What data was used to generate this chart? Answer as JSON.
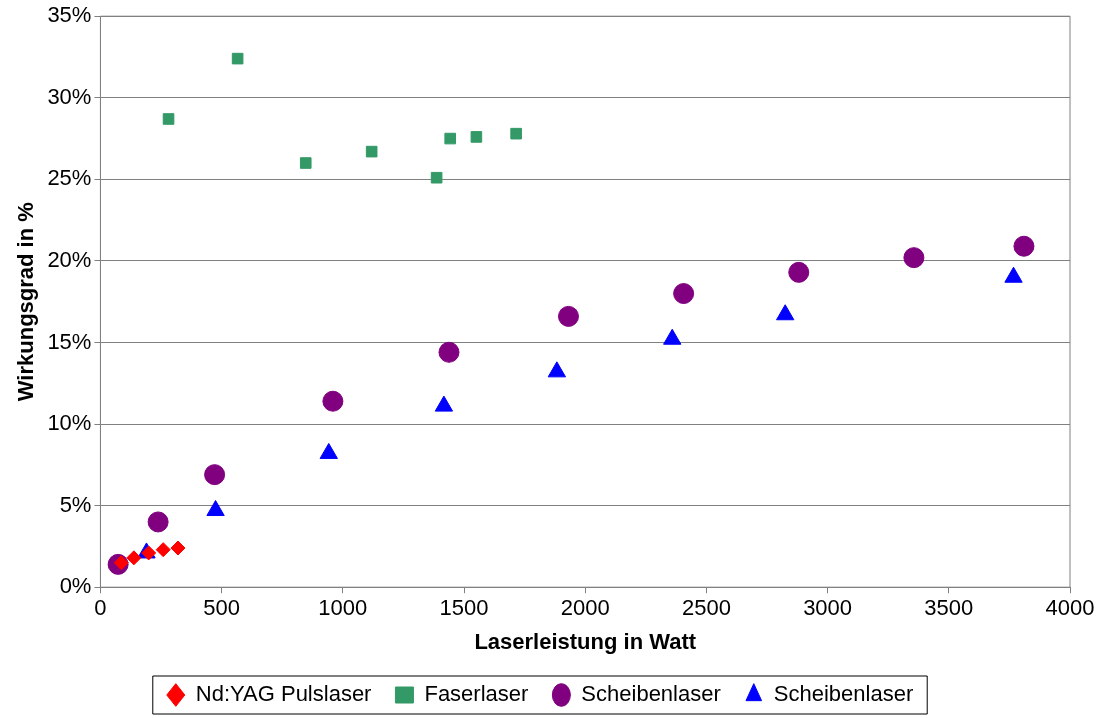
{
  "chart_data": {
    "type": "scatter",
    "xlabel": "Laserleistung in Watt",
    "ylabel": "Wirkungsgrad in %",
    "xlim": [
      0,
      4000
    ],
    "xticks": [
      0,
      500,
      1000,
      1500,
      2000,
      2500,
      3000,
      3500,
      4000
    ],
    "ylim": [
      0,
      35
    ],
    "yticks": [
      {
        "value": 0,
        "label": "0%"
      },
      {
        "value": 5,
        "label": "5%"
      },
      {
        "value": 10,
        "label": "10%"
      },
      {
        "value": 15,
        "label": "15%"
      },
      {
        "value": 20,
        "label": "20%"
      },
      {
        "value": 25,
        "label": "25%"
      },
      {
        "value": 30,
        "label": "30%"
      },
      {
        "value": 35,
        "label": "35%"
      }
    ],
    "grid": "y",
    "legend": "bottom",
    "series": [
      {
        "name": "Nd:YAG Pulslaser",
        "color": "#ff0000",
        "marker": "diamond",
        "x": [
          86,
          138,
          199,
          259,
          320
        ],
        "values": [
          1.5,
          1.8,
          2.1,
          2.3,
          2.4
        ]
      },
      {
        "name": "Faserlaser",
        "color": "#339966",
        "marker": "square",
        "x": [
          281,
          566,
          847,
          1119,
          1387,
          1443,
          1551,
          1715
        ],
        "values": [
          28.7,
          32.4,
          26.0,
          26.7,
          25.1,
          27.5,
          27.6,
          27.8
        ]
      },
      {
        "name": "Scheibenlaser",
        "color": "#800080",
        "marker": "circle",
        "x": [
          73,
          238,
          471,
          959,
          1438,
          1931,
          2406,
          2881,
          3356,
          3810
        ],
        "values": [
          1.4,
          4.0,
          6.9,
          11.4,
          14.4,
          16.6,
          18.0,
          19.3,
          20.2,
          20.9
        ]
      },
      {
        "name": "Scheibenlaser",
        "color": "#0000ff",
        "marker": "triangle",
        "x": [
          190,
          475,
          942,
          1417,
          1883,
          2359,
          2825,
          3767
        ],
        "values": [
          2.1,
          4.7,
          8.2,
          11.1,
          13.2,
          15.2,
          16.7,
          19.0
        ]
      }
    ]
  }
}
